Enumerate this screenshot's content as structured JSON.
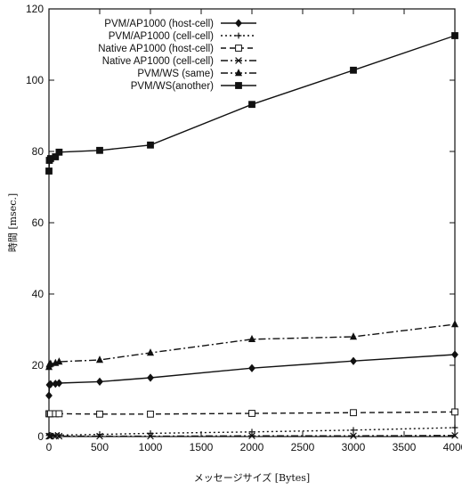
{
  "chart_data": {
    "type": "line",
    "xlabel": "メッセージサイズ [Bytes]",
    "ylabel": "時間 [msec.]",
    "xlim": [
      0,
      4000
    ],
    "ylim": [
      0,
      120
    ],
    "xticks": [
      0,
      500,
      1000,
      1500,
      2000,
      2500,
      3000,
      3500,
      4000
    ],
    "yticks": [
      0,
      20,
      40,
      60,
      80,
      100,
      120
    ],
    "grid": false,
    "legend_position": "top-left",
    "series": [
      {
        "name": "PVM/AP1000 (host-cell)",
        "marker": "diamond",
        "dash": "solid",
        "x": [
          0,
          4,
          16,
          64,
          100,
          500,
          1000,
          2000,
          3000,
          4000
        ],
        "y": [
          11.5,
          14.5,
          14.7,
          14.8,
          15.0,
          15.4,
          16.5,
          19.2,
          21.2,
          23.0
        ]
      },
      {
        "name": "PVM/AP1000 (cell-cell)",
        "marker": "plus",
        "dash": "dotted",
        "x": [
          0,
          4,
          16,
          64,
          100,
          500,
          1000,
          2000,
          3000,
          4000
        ],
        "y": [
          0.3,
          0.4,
          0.4,
          0.4,
          0.4,
          0.6,
          0.9,
          1.3,
          1.8,
          2.5
        ]
      },
      {
        "name": "Native AP1000 (host-cell)",
        "marker": "square",
        "dash": "dashed",
        "x": [
          0,
          4,
          16,
          64,
          100,
          500,
          1000,
          2000,
          3000,
          4000
        ],
        "y": [
          6.4,
          6.4,
          6.4,
          6.4,
          6.4,
          6.3,
          6.3,
          6.5,
          6.7,
          6.9
        ]
      },
      {
        "name": "Native AP1000 (cell-cell)",
        "marker": "cross",
        "dash": "dashdot",
        "x": [
          0,
          4,
          16,
          64,
          100,
          500,
          1000,
          2000,
          3000,
          4000
        ],
        "y": [
          0.1,
          0.1,
          0.1,
          0.1,
          0.1,
          0.1,
          0.1,
          0.2,
          0.2,
          0.3
        ]
      },
      {
        "name": "PVM/WS (same)",
        "marker": "triangle",
        "dash": "dashdot",
        "x": [
          0,
          4,
          16,
          64,
          100,
          500,
          1000,
          2000,
          3000,
          4000
        ],
        "y": [
          19.5,
          20.2,
          20.4,
          20.6,
          21.0,
          21.5,
          23.5,
          27.3,
          28.0,
          31.5
        ]
      },
      {
        "name": "PVM/WS(another)",
        "marker": "filled-square",
        "dash": "solid",
        "x": [
          0,
          4,
          16,
          64,
          100,
          500,
          1000,
          2000,
          3000,
          4000
        ],
        "y": [
          74.5,
          77.5,
          78.0,
          78.5,
          79.8,
          80.3,
          81.8,
          93.2,
          102.8,
          112.5
        ]
      }
    ]
  }
}
